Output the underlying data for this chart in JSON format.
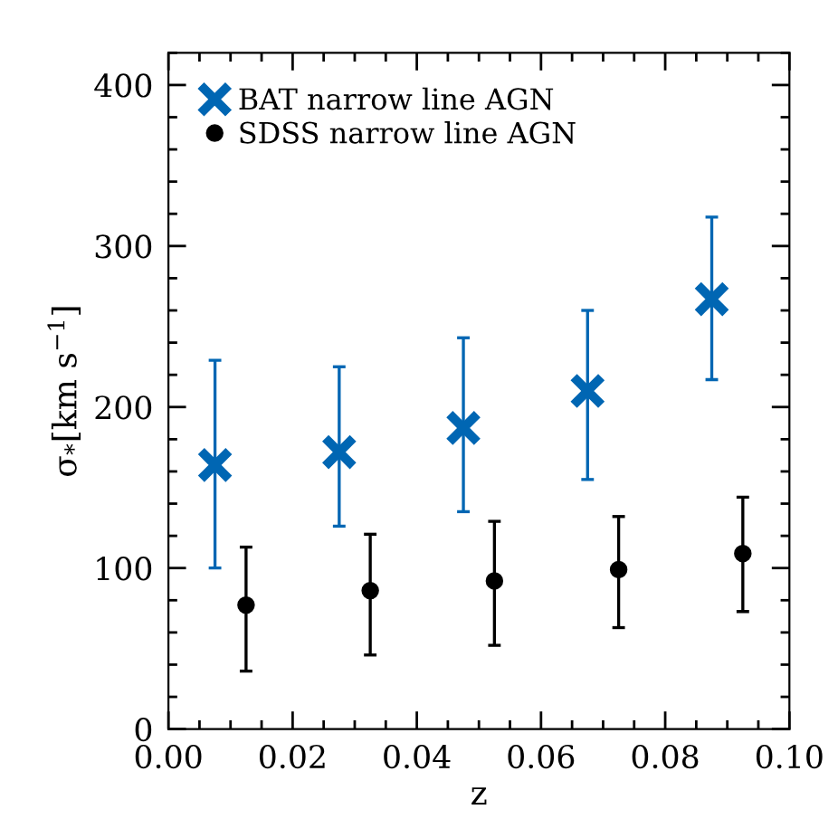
{
  "chart_data": {
    "type": "scatter",
    "xlabel": "z",
    "ylabel": "σ$_{*}$[km s$^{−1}$]",
    "xlim": [
      0.0,
      0.1
    ],
    "xticks": [
      {
        "value": 0.0,
        "label": "0.00"
      },
      {
        "value": 0.02,
        "label": "0.02"
      },
      {
        "value": 0.04,
        "label": "0.04"
      },
      {
        "value": 0.06,
        "label": "0.06"
      },
      {
        "value": 0.08,
        "label": "0.08"
      },
      {
        "value": 0.1,
        "label": "0.10"
      }
    ],
    "ylim": [
      0,
      420
    ],
    "yticks": [
      0,
      100,
      200,
      300,
      400
    ],
    "grid": false,
    "legend": "top left",
    "series": [
      {
        "name": "BAT narrow line AGN",
        "color": "#0066b3",
        "marker": "cross",
        "x": [
          0.0075,
          0.0275,
          0.0475,
          0.0675,
          0.0875
        ],
        "values": [
          164,
          172,
          187,
          210,
          267
        ],
        "errors": [
          [
            100,
            229
          ],
          [
            126,
            225
          ],
          [
            135,
            243
          ],
          [
            155,
            260
          ],
          [
            217,
            318
          ]
        ]
      },
      {
        "name": "SDSS narrow line AGN",
        "color": "#000000",
        "marker": "circle",
        "x": [
          0.0125,
          0.0325,
          0.0525,
          0.0725,
          0.0925
        ],
        "values": [
          77,
          86,
          92,
          99,
          109
        ],
        "errors": [
          [
            36,
            113
          ],
          [
            46,
            121
          ],
          [
            52,
            129
          ],
          [
            63,
            132
          ],
          [
            73,
            144
          ]
        ]
      }
    ]
  }
}
